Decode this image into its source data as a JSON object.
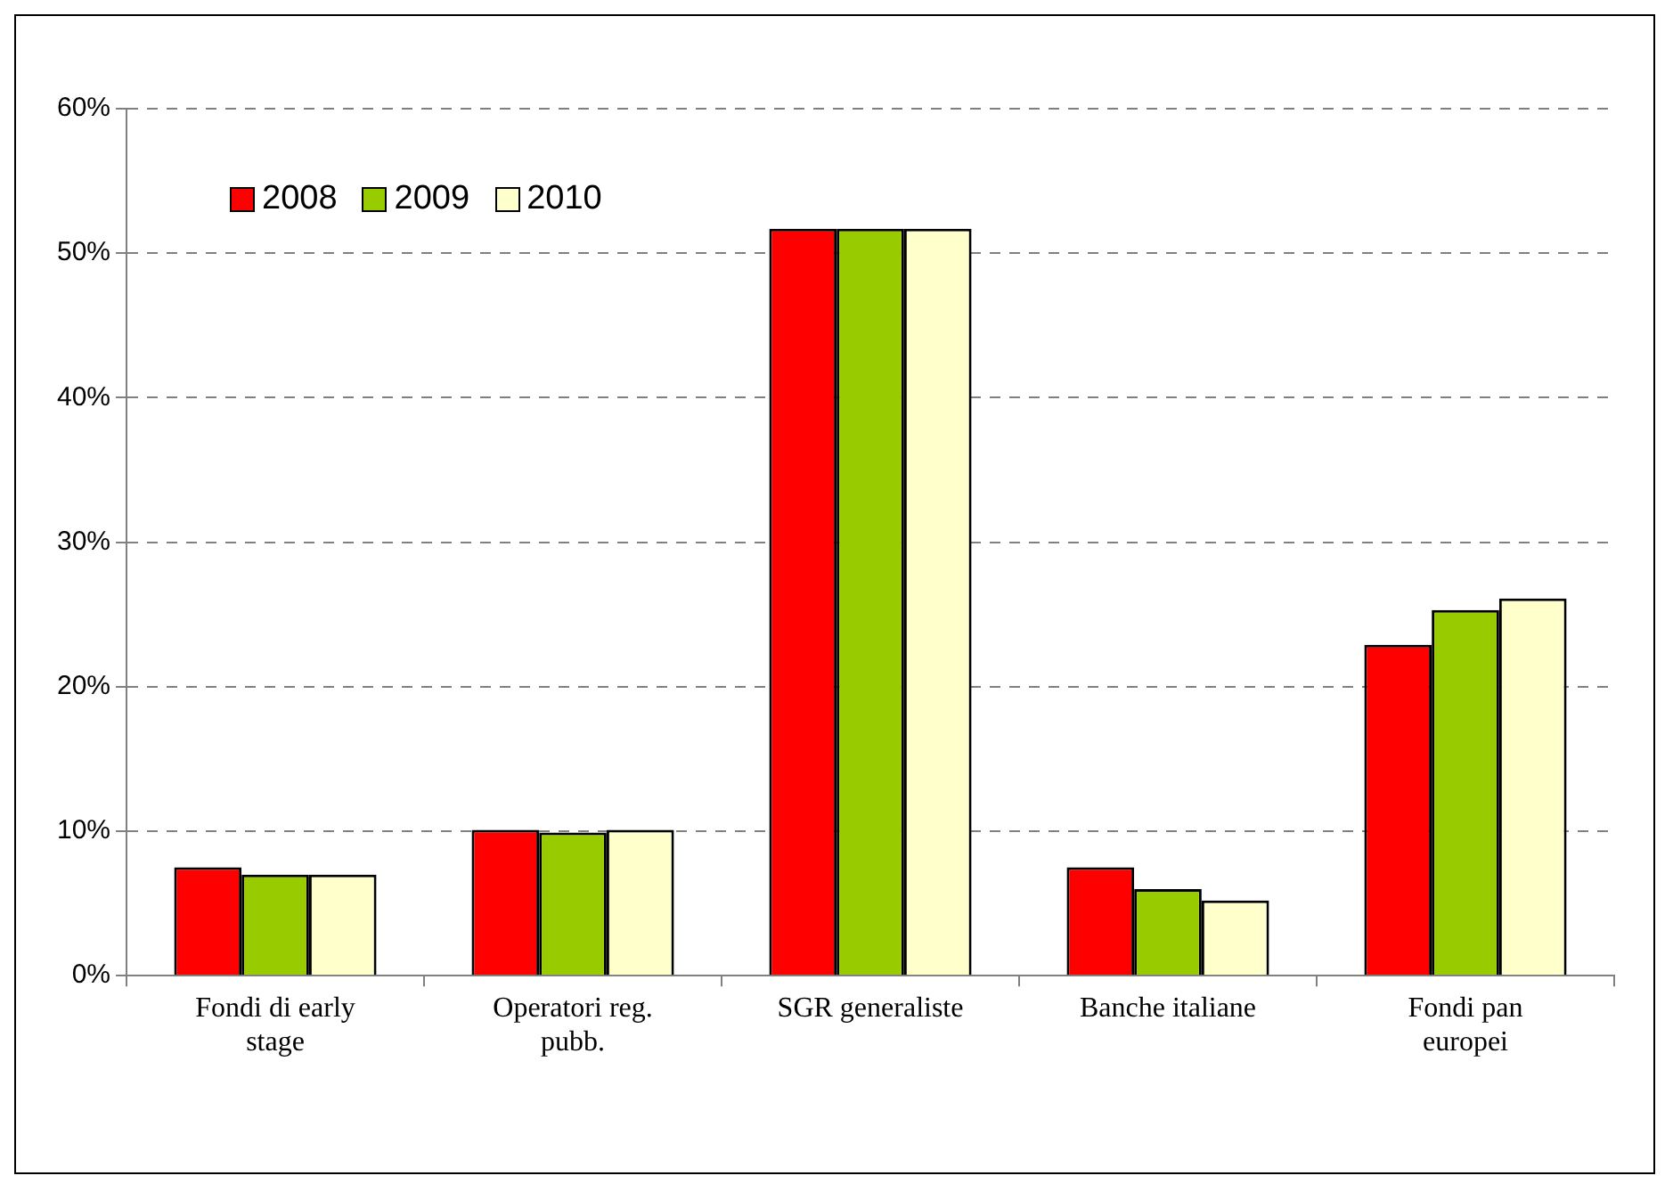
{
  "chart_data": {
    "type": "bar",
    "categories": [
      "Fondi di early stage",
      "Operatori reg. pubb.",
      "SGR generaliste",
      "Banche italiane",
      "Fondi pan europei"
    ],
    "series": [
      {
        "name": "2008",
        "color": "#ff0000",
        "values": [
          7.5,
          10.1,
          51.7,
          7.5,
          22.9
        ]
      },
      {
        "name": "2009",
        "color": "#99cc00",
        "values": [
          7.0,
          9.9,
          51.7,
          6.0,
          25.3
        ]
      },
      {
        "name": "2010",
        "color": "#ffffcc",
        "values": [
          7.0,
          10.1,
          51.7,
          5.2,
          26.1
        ]
      }
    ],
    "ylim": [
      0,
      60
    ],
    "yticks": [
      {
        "value": 0,
        "label": "0%"
      },
      {
        "value": 10,
        "label": "10%"
      },
      {
        "value": 20,
        "label": "20%"
      },
      {
        "value": 30,
        "label": "30%"
      },
      {
        "value": 40,
        "label": "40%"
      },
      {
        "value": 50,
        "label": "50%"
      },
      {
        "value": 60,
        "label": "60%"
      }
    ],
    "grid": "y",
    "legend": "top left"
  }
}
